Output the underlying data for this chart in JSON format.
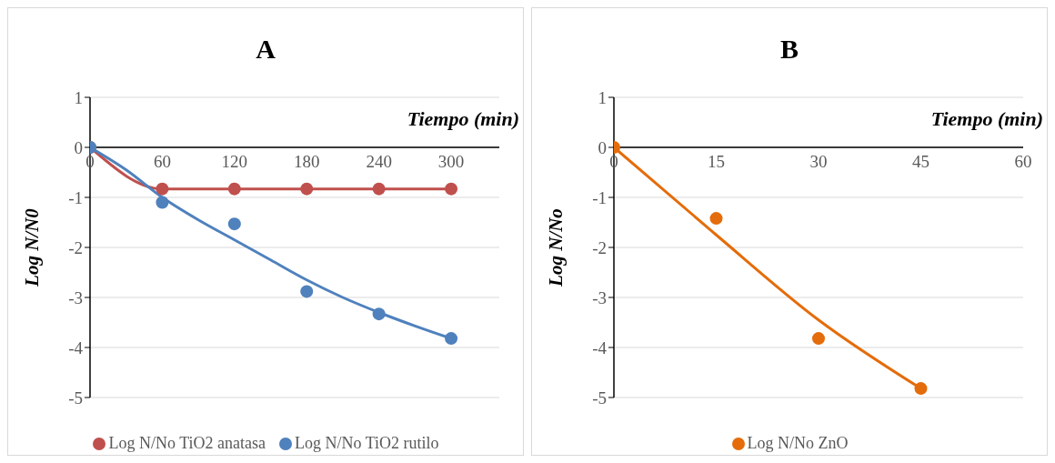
{
  "chart_data": [
    {
      "type": "scatter",
      "title": "A",
      "xlabel": "Tiempo (min)",
      "ylabel": "Log N/N0",
      "xlim": [
        0,
        340
      ],
      "xticks": [
        0,
        60,
        120,
        180,
        240,
        300
      ],
      "ylim": [
        -5,
        1
      ],
      "yticks": [
        -5,
        -4,
        -3,
        -2,
        -1,
        0,
        1
      ],
      "grid": "y",
      "legend": "bottom",
      "marker": "circle",
      "series": [
        {
          "name": "Log N/No TiO2 anatasa",
          "type": "line",
          "color": "#c0504d",
          "x": [
            0,
            60,
            120,
            180,
            240,
            300
          ],
          "values": [
            0,
            -0.83,
            -0.83,
            -0.83,
            -0.83,
            -0.83
          ]
        },
        {
          "name": "Log N/No TiO2 rutilo",
          "type": "scatter",
          "color": "#4f81bd",
          "x": [
            0,
            60,
            120,
            180,
            240,
            300
          ],
          "values": [
            0,
            -1.1,
            -1.53,
            -2.88,
            -3.33,
            -3.82
          ]
        },
        {
          "type": "line",
          "marker": "none",
          "color": "#4f81bd",
          "x": [
            0,
            30,
            60,
            90,
            120,
            150,
            180,
            210,
            240,
            270,
            300
          ],
          "values": [
            0,
            -0.45,
            -1.0,
            -1.45,
            -1.85,
            -2.25,
            -2.65,
            -3.0,
            -3.3,
            -3.57,
            -3.82
          ]
        }
      ]
    },
    {
      "type": "scatter",
      "title": "B",
      "xlabel": "Tiempo (min)",
      "ylabel": "Log N/No",
      "xlim": [
        0,
        60
      ],
      "xticks": [
        0,
        15,
        30,
        45,
        60
      ],
      "ylim": [
        -5,
        1
      ],
      "yticks": [
        -5,
        -4,
        -3,
        -2,
        -1,
        0,
        1
      ],
      "grid": "y",
      "legend": "bottom",
      "marker": "circle",
      "series": [
        {
          "type": "line",
          "marker": "none",
          "color": "#e46c0a",
          "x": [
            0,
            15,
            30,
            45
          ],
          "values": [
            0,
            -1.75,
            -3.45,
            -4.82
          ]
        },
        {
          "name": "Log N/No ZnO",
          "type": "scatter",
          "color": "#e46c0a",
          "x": [
            0,
            15,
            30,
            45
          ],
          "values": [
            0,
            -1.42,
            -3.82,
            -4.82
          ]
        }
      ]
    }
  ]
}
